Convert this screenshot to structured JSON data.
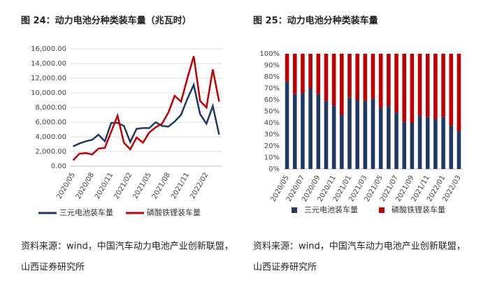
{
  "chart_data": [
    {
      "type": "line",
      "title": "图 24：动力电池分种类装车量（兆瓦时）",
      "categories": [
        "2020/05",
        null,
        null,
        "2020/08",
        null,
        null,
        "2020/11",
        null,
        null,
        "2021/02",
        null,
        null,
        "2021/05",
        null,
        null,
        "2021/08",
        null,
        null,
        "2021/11",
        null,
        null,
        "2022/02",
        null,
        null
      ],
      "series": [
        {
          "name": "三元电池装车量",
          "color": "#203864",
          "values": [
            2700,
            3100,
            3400,
            3600,
            4300,
            3400,
            5900,
            5900,
            5500,
            3300,
            5100,
            5200,
            5200,
            6000,
            5500,
            5400,
            6100,
            7000,
            9200,
            11100,
            7100,
            5800,
            8200,
            4300
          ]
        },
        {
          "name": "磷酸铁锂装车量",
          "color": "#c00000",
          "values": [
            800,
            1700,
            1800,
            1600,
            2400,
            2500,
            4700,
            6900,
            3200,
            2300,
            3900,
            3200,
            4600,
            5300,
            5800,
            7300,
            9600,
            8800,
            12000,
            15000,
            8900,
            8000,
            13200,
            8800
          ]
        }
      ],
      "ylim": [
        0,
        16000
      ],
      "yticks": [
        {
          "value": 0,
          "label": "0.00"
        },
        {
          "value": 2000,
          "label": "2,000.00"
        },
        {
          "value": 4000,
          "label": "4,000.00"
        },
        {
          "value": 6000,
          "label": "6,000.00"
        },
        {
          "value": 8000,
          "label": "8,000.00"
        },
        {
          "value": 10000,
          "label": "10,000.00"
        },
        {
          "value": 12000,
          "label": "12,000.00"
        },
        {
          "value": 14000,
          "label": "14,000.00"
        },
        {
          "value": 16000,
          "label": "16,000.00"
        }
      ],
      "grid": true,
      "legend": "bottom",
      "source": [
        "资料来源：wind，中国汽车动力电池产业创新联盟，",
        "山西证券研究所"
      ]
    },
    {
      "type": "stacked_bar",
      "title": "图 25：动力电池分种类装车量",
      "categories": [
        "2020/05",
        null,
        "2020/07",
        null,
        "2020/09",
        null,
        "2020/11",
        null,
        "2021/01",
        null,
        "2021/03",
        null,
        "2021/05",
        null,
        "2021/07",
        null,
        "2021/09",
        null,
        "2021/11",
        null,
        "2022/01",
        null,
        "2022/03"
      ],
      "series": [
        {
          "name": "三元电池装车量",
          "color": "#203864",
          "values": [
            76,
            65,
            66,
            70,
            65,
            59,
            55,
            47,
            62,
            60,
            59,
            61,
            53,
            54,
            49,
            41,
            40,
            46,
            45,
            43,
            45,
            38,
            33
          ]
        },
        {
          "name": "磷酸铁锂装车量",
          "color": "#c00000",
          "values": [
            24,
            35,
            34,
            30,
            35,
            41,
            45,
            53,
            38,
            40,
            41,
            39,
            47,
            46,
            51,
            59,
            60,
            54,
            55,
            57,
            55,
            62,
            67
          ]
        }
      ],
      "ylim": [
        0,
        100
      ],
      "yticks": [
        {
          "value": 0,
          "label": "0%"
        },
        {
          "value": 10,
          "label": "10%"
        },
        {
          "value": 20,
          "label": "20%"
        },
        {
          "value": 30,
          "label": "30%"
        },
        {
          "value": 40,
          "label": "40%"
        },
        {
          "value": 50,
          "label": "50%"
        },
        {
          "value": 60,
          "label": "60%"
        },
        {
          "value": 70,
          "label": "70%"
        },
        {
          "value": 80,
          "label": "80%"
        },
        {
          "value": 90,
          "label": "90%"
        },
        {
          "value": 100,
          "label": "100%"
        }
      ],
      "grid": false,
      "legend": "bottom",
      "source": [
        "资料来源：wind，中国汽车动力电池产业创新联盟，",
        "山西证券研究所"
      ]
    }
  ]
}
